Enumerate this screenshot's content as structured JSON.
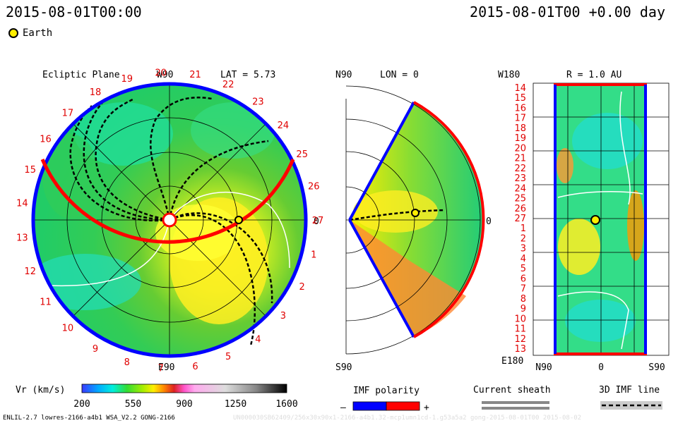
{
  "header": {
    "time_left": "2015-08-01T00:00",
    "time_right": "2015-08-01T00 +0.00 day",
    "earth_label": "Earth"
  },
  "panels": {
    "ecliptic": {
      "title": "Ecliptic Plane",
      "top_label": "W90",
      "bottom_label": "E90",
      "right_label": "0",
      "lat_label": "LAT = 5.73",
      "carrington_labels": [
        "1",
        "2",
        "3",
        "4",
        "5",
        "6",
        "7",
        "8",
        "9",
        "10",
        "11",
        "12",
        "13",
        "14",
        "15",
        "16",
        "17",
        "18",
        "19",
        "20",
        "21",
        "22",
        "23",
        "24",
        "25",
        "26",
        "27"
      ]
    },
    "meridional": {
      "top_label": "N90",
      "bottom_label": "S90",
      "lon_label": "LON = 0",
      "right_label": "0"
    },
    "sphere": {
      "top_label": "W180",
      "bottom_label": "E180",
      "r_label": "R = 1.0 AU",
      "x_labels": [
        "N90",
        "0",
        "S90"
      ],
      "y_labels": [
        "14",
        "15",
        "16",
        "17",
        "18",
        "19",
        "20",
        "21",
        "22",
        "23",
        "24",
        "25",
        "26",
        "27",
        "1",
        "2",
        "3",
        "4",
        "5",
        "6",
        "7",
        "8",
        "9",
        "10",
        "11",
        "12",
        "13"
      ]
    }
  },
  "colorbar": {
    "label": "Vr (km/s)",
    "ticks": [
      "200",
      "550",
      "900",
      "1250",
      "1600"
    ]
  },
  "legends": {
    "imf_title": "IMF polarity",
    "imf_minus": "–",
    "imf_plus": "+",
    "imf_colors": [
      "#0000ff",
      "#ff0000"
    ],
    "current_sheath": "Current sheath",
    "imf_line": "3D IMF line"
  },
  "footer": {
    "model": "ENLIL-2.7 lowres-2166-a4b1 WSA_V2.2 GONG-2166",
    "watermark": "UN000030SB62409/256x30x90x1-2166-a4b1.32-mcp1umn1cd-1.g53a5a2 gong-2015-08-01T00  2015-08-02"
  },
  "chart_data": {
    "type": "heatmap",
    "quantity": "Vr (km/s)",
    "color_range": [
      200,
      1600
    ],
    "colorbar_ticks": [
      200,
      550,
      900,
      1250,
      1600
    ],
    "earth": {
      "radius_au": 1.0,
      "lon_deg": 0,
      "lat_deg": 5.73
    }
  }
}
